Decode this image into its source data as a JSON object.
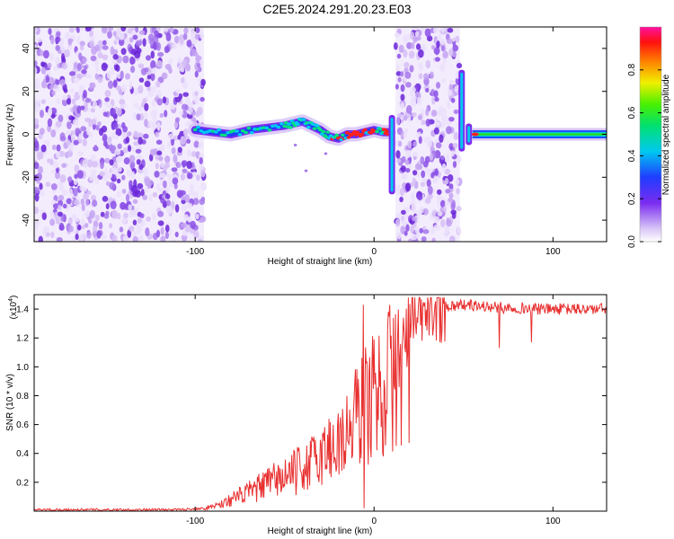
{
  "figure_title": "C2E5.2024.291.20.23.E03",
  "colors": {
    "snr_line": "#e83030",
    "ridge_purple": "#7a2cf0",
    "noise_light": "#c9a8f5",
    "noise_dark": "#6a24d8"
  },
  "chart_data": [
    {
      "type": "heatmap",
      "title": "C2E5.2024.291.20.23.E03",
      "xlabel": "Height of straight line (km)",
      "ylabel": "Frequency (Hz)",
      "xlim": [
        -190,
        130
      ],
      "ylim": [
        -50,
        50
      ],
      "x_ticks": [
        -100,
        0,
        100
      ],
      "y_ticks": [
        -40,
        -20,
        0,
        20,
        40
      ],
      "x_tick_labels": [
        "-100",
        "0",
        "100"
      ],
      "y_tick_labels": [
        "-40",
        "-20",
        "0",
        "20",
        "40"
      ],
      "colorbar": {
        "label": "Normalized spectral amplitude",
        "range": [
          0,
          1
        ],
        "ticks": [
          0.0,
          0.2,
          0.4,
          0.6,
          0.8
        ],
        "tick_labels": [
          "0.0",
          "0.2",
          "0.4",
          "0.6",
          "0.8"
        ],
        "colormap": "rainbow (violet-blue-cyan-green-yellow-red-magenta)"
      },
      "noise_regions_km": [
        [
          -190,
          -95
        ],
        [
          12,
          48
        ]
      ],
      "ridge": {
        "x": [
          -100,
          -90,
          -80,
          -70,
          -60,
          -50,
          -45,
          -40,
          -35,
          -30,
          -25,
          -20,
          -15,
          -10,
          -5,
          0,
          5,
          8
        ],
        "y": [
          2,
          1,
          0,
          2,
          3,
          4,
          5,
          6,
          4,
          2,
          -1,
          -2,
          0,
          0,
          1,
          2,
          1,
          1
        ]
      },
      "tone": {
        "x": [
          55,
          130
        ],
        "y": 0
      },
      "spikes": [
        {
          "x": 10,
          "ymin": -28,
          "ymax": 9
        },
        {
          "x": 49,
          "ymin": -8,
          "ymax": 30
        },
        {
          "x": 53,
          "ymin": -5,
          "ymax": 5
        }
      ],
      "grid": false
    },
    {
      "type": "line",
      "xlabel": "Height of straight line (km)",
      "ylabel": "SNR (10 * v/v)",
      "scale_label": "(x10",
      "scale_exponent": "4",
      "xlim": [
        -190,
        130
      ],
      "ylim": [
        0,
        1.5
      ],
      "x_ticks": [
        -100,
        0,
        100
      ],
      "y_ticks": [
        0.2,
        0.4,
        0.6,
        0.8,
        1.0,
        1.2,
        1.4
      ],
      "x_tick_labels": [
        "-100",
        "0",
        "100"
      ],
      "y_tick_labels": [
        "0.2",
        "0.4",
        "0.6",
        "0.8",
        "1.0",
        "1.2",
        "1.4"
      ],
      "series": [
        {
          "x": [
            -190,
            -150,
            -110,
            -95,
            -85,
            -75,
            -65,
            -55,
            -45,
            -35,
            -25,
            -15,
            -10,
            -5,
            0,
            5,
            10,
            15,
            20,
            30,
            40,
            50,
            60,
            70,
            80,
            90,
            100,
            110,
            120,
            130
          ],
          "y": [
            0.01,
            0.01,
            0.01,
            0.02,
            0.06,
            0.12,
            0.18,
            0.25,
            0.3,
            0.38,
            0.5,
            0.6,
            0.75,
            0.85,
            0.9,
            1.0,
            1.05,
            1.15,
            1.3,
            1.4,
            1.42,
            1.43,
            1.42,
            1.41,
            1.41,
            1.4,
            1.4,
            1.4,
            1.4,
            1.4
          ]
        }
      ],
      "grid": false
    }
  ]
}
